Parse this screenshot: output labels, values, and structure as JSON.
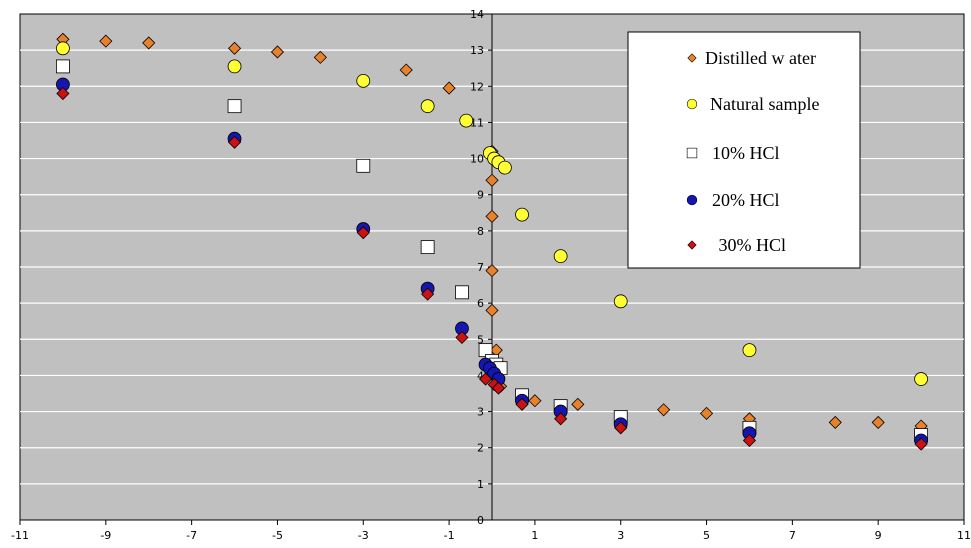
{
  "chart_data": {
    "type": "scatter",
    "title": "",
    "xlabel": "",
    "ylabel": "",
    "xlim": [
      -11,
      11
    ],
    "ylim": [
      0,
      14
    ],
    "x_ticks": [
      -11,
      -9,
      -7,
      -5,
      -3,
      -1,
      1,
      3,
      5,
      7,
      9,
      11
    ],
    "y_ticks": [
      0,
      1,
      2,
      3,
      4,
      5,
      6,
      7,
      8,
      9,
      10,
      11,
      12,
      13,
      14
    ],
    "grid": "horizontal",
    "plot_background": "#c0c0c0",
    "legend_position": "top-right",
    "series": [
      {
        "name": "Distilled w ater",
        "marker": "diamond",
        "color": "#e8822a",
        "points": [
          [
            -10,
            13.3
          ],
          [
            -9,
            13.25
          ],
          [
            -8,
            13.2
          ],
          [
            -6,
            13.05
          ],
          [
            -5,
            12.95
          ],
          [
            -4,
            12.8
          ],
          [
            -2,
            12.45
          ],
          [
            -1,
            11.95
          ],
          [
            0,
            10.2
          ],
          [
            0,
            9.4
          ],
          [
            0,
            8.4
          ],
          [
            0,
            6.9
          ],
          [
            0,
            5.8
          ],
          [
            0.1,
            4.7
          ],
          [
            0.1,
            4.3
          ],
          [
            0.2,
            3.7
          ],
          [
            1,
            3.3
          ],
          [
            2,
            3.2
          ],
          [
            4,
            3.05
          ],
          [
            5,
            2.95
          ],
          [
            6,
            2.8
          ],
          [
            8,
            2.7
          ],
          [
            9,
            2.7
          ],
          [
            10,
            2.6
          ]
        ]
      },
      {
        "name": "Natural sample",
        "marker": "circle",
        "color": "#ffff33",
        "points": [
          [
            -10,
            13.05
          ],
          [
            -6,
            12.55
          ],
          [
            -3,
            12.15
          ],
          [
            -1.5,
            11.45
          ],
          [
            -0.6,
            11.05
          ],
          [
            -0.05,
            10.15
          ],
          [
            0.05,
            10.0
          ],
          [
            0.15,
            9.9
          ],
          [
            0.3,
            9.75
          ],
          [
            0.7,
            8.45
          ],
          [
            1.6,
            7.3
          ],
          [
            3,
            6.05
          ],
          [
            6,
            4.7
          ],
          [
            10,
            3.9
          ]
        ]
      },
      {
        "name": "10% HCl",
        "marker": "square",
        "color": "#ffffff",
        "points": [
          [
            -10,
            12.55
          ],
          [
            -6,
            11.45
          ],
          [
            -3,
            9.8
          ],
          [
            -1.5,
            7.55
          ],
          [
            -0.7,
            6.3
          ],
          [
            -0.15,
            4.7
          ],
          [
            0,
            4.4
          ],
          [
            0.1,
            4.3
          ],
          [
            0.2,
            4.2
          ],
          [
            0.7,
            3.45
          ],
          [
            1.6,
            3.15
          ],
          [
            3,
            2.85
          ],
          [
            6,
            2.55
          ],
          [
            10,
            2.35
          ]
        ]
      },
      {
        "name": "20% HCl",
        "marker": "circle",
        "color": "#1515b0",
        "points": [
          [
            -10,
            12.05
          ],
          [
            -6,
            10.55
          ],
          [
            -3,
            8.05
          ],
          [
            -1.5,
            6.4
          ],
          [
            -0.7,
            5.3
          ],
          [
            -0.15,
            4.3
          ],
          [
            -0.05,
            4.2
          ],
          [
            0.05,
            4.05
          ],
          [
            0.15,
            3.9
          ],
          [
            0.7,
            3.3
          ],
          [
            1.6,
            3.0
          ],
          [
            3,
            2.65
          ],
          [
            6,
            2.4
          ],
          [
            10,
            2.2
          ]
        ]
      },
      {
        "name": " 30% HCl",
        "marker": "diamond",
        "color": "#cc1111",
        "points": [
          [
            -10,
            11.8
          ],
          [
            -6,
            10.45
          ],
          [
            -3,
            7.95
          ],
          [
            -1.5,
            6.25
          ],
          [
            -0.7,
            5.05
          ],
          [
            -0.15,
            3.9
          ],
          [
            0.05,
            3.75
          ],
          [
            0.15,
            3.65
          ],
          [
            0.7,
            3.2
          ],
          [
            1.6,
            2.8
          ],
          [
            3,
            2.55
          ],
          [
            6,
            2.2
          ],
          [
            10,
            2.1
          ]
        ]
      }
    ]
  }
}
